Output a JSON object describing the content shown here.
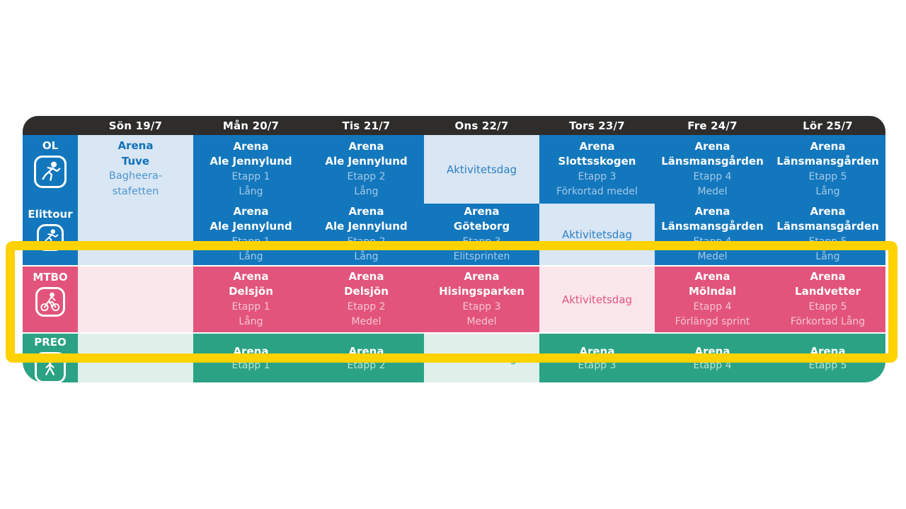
{
  "header": {
    "days": [
      "Sön 19/7",
      "Mån 20/7",
      "Tis 21/7",
      "Ons 22/7",
      "Tors 23/7",
      "Fre 24/7",
      "Lör 25/7"
    ]
  },
  "rows": [
    {
      "id": "ol",
      "label": "OL",
      "icon": "runner-icon",
      "cells": [
        {
          "type": "info",
          "lines": [
            "Arena",
            "Tuve",
            "Bagheera-",
            "stafetten"
          ]
        },
        {
          "type": "event",
          "lines": [
            "Arena",
            "Ale Jennylund",
            "Etapp 1",
            "Lång"
          ]
        },
        {
          "type": "event",
          "lines": [
            "Arena",
            "Ale Jennylund",
            "Etapp 2",
            "Lång"
          ]
        },
        {
          "type": "activity",
          "label": "Aktivitetsdag"
        },
        {
          "type": "event",
          "lines": [
            "Arena",
            "Slottsskogen",
            "Etapp 3",
            "Förkortad medel"
          ]
        },
        {
          "type": "event",
          "lines": [
            "Arena",
            "Länsmansgården",
            "Etapp 4",
            "Medel"
          ]
        },
        {
          "type": "event",
          "lines": [
            "Arena",
            "Länsmansgården",
            "Etapp 5",
            "Lång"
          ]
        }
      ]
    },
    {
      "id": "elittour",
      "label": "Elittour",
      "icon": "runner-icon",
      "cells": [
        {
          "type": "skip"
        },
        {
          "type": "event",
          "lines": [
            "Arena",
            "Ale Jennylund",
            "Etapp 1",
            "Lång"
          ]
        },
        {
          "type": "event",
          "lines": [
            "Arena",
            "Ale Jennylund",
            "Etapp 2",
            "Lång"
          ]
        },
        {
          "type": "event",
          "lines": [
            "Arena",
            "Göteborg",
            "Etapp 3",
            "Elitsprinten"
          ]
        },
        {
          "type": "activity",
          "label": "Aktivitetsdag"
        },
        {
          "type": "event",
          "lines": [
            "Arena",
            "Länsmansgården",
            "Etapp 4",
            "Medel"
          ]
        },
        {
          "type": "event",
          "lines": [
            "Arena",
            "Länsmansgården",
            "Etapp 5",
            "Lång"
          ]
        }
      ]
    },
    {
      "id": "mtbo",
      "label": "MTBO",
      "icon": "cyclist-icon",
      "cells": [
        {
          "type": "empty"
        },
        {
          "type": "event",
          "lines": [
            "Arena",
            "Delsjön",
            "Etapp 1",
            "Lång"
          ]
        },
        {
          "type": "event",
          "lines": [
            "Arena",
            "Delsjön",
            "Etapp 2",
            "Medel"
          ]
        },
        {
          "type": "event",
          "lines": [
            "Arena",
            "Hisingsparken",
            "Etapp 3",
            "Medel"
          ]
        },
        {
          "type": "activity",
          "label": "Aktivitetsdag"
        },
        {
          "type": "event",
          "lines": [
            "Arena",
            "Mölndal",
            "Etapp 4",
            "Förlängd sprint"
          ]
        },
        {
          "type": "event",
          "lines": [
            "Arena",
            "Landvetter",
            "Etapp 5",
            "Förkortad Lång"
          ]
        }
      ]
    },
    {
      "id": "preo",
      "label": "PREO",
      "icon": "person-icon",
      "cells": [
        {
          "type": "empty"
        },
        {
          "type": "event",
          "lines": [
            "Arena",
            "",
            "Etapp 1"
          ]
        },
        {
          "type": "event",
          "lines": [
            "Arena",
            "",
            "Etapp 2"
          ]
        },
        {
          "type": "activity",
          "label": "Aktivitetsdag"
        },
        {
          "type": "event",
          "lines": [
            "Arena",
            "",
            "Etapp 3"
          ]
        },
        {
          "type": "event",
          "lines": [
            "Arena",
            "",
            "Etapp 4"
          ]
        },
        {
          "type": "event",
          "lines": [
            "Arena",
            "",
            "Etapp 5"
          ]
        }
      ]
    }
  ],
  "highlight": {
    "color": "#FFD200"
  },
  "colors": {
    "header_bg": "#2E2D2C",
    "blue": "#1377BD",
    "pink": "#E2547B",
    "green": "#2BA284",
    "light_blue": "#D9E6F3",
    "light_pink": "#FAE7EC",
    "light_green": "#DFEFEA",
    "highlight_yellow": "#FFD200"
  }
}
